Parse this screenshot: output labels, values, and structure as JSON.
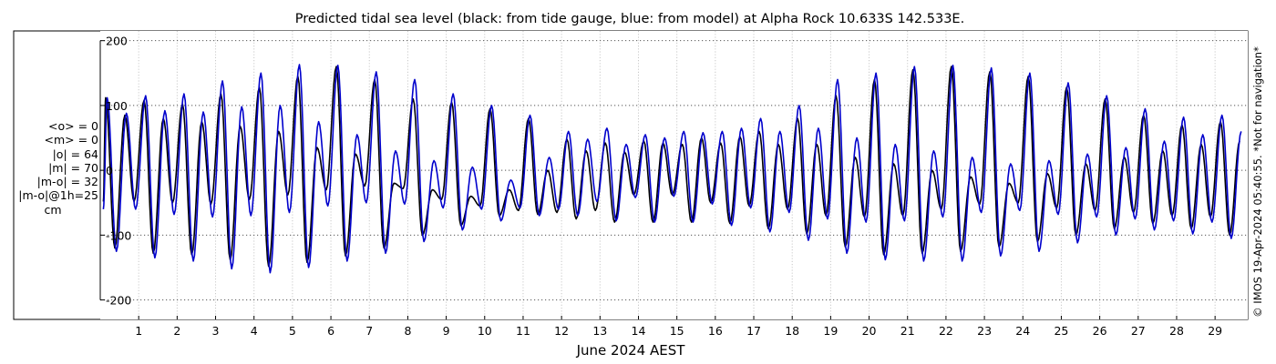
{
  "chart_data": {
    "type": "line",
    "title": "Predicted tidal sea level (black: from tide gauge, blue: from model) at Alpha Rock 10.633S 142.533E.",
    "xlabel": "June 2024 AEST",
    "ylabel": "",
    "xlim": [
      0,
      29.85
    ],
    "ylim": [
      -230,
      215
    ],
    "x_tick_labels": [
      "1",
      "2",
      "3",
      "4",
      "5",
      "6",
      "7",
      "8",
      "9",
      "10",
      "11",
      "12",
      "13",
      "14",
      "15",
      "16",
      "17",
      "18",
      "19",
      "20",
      "21",
      "22",
      "23",
      "24",
      "25",
      "26",
      "27",
      "28",
      "29"
    ],
    "y_tick_values": [
      -200,
      -100,
      0,
      100,
      200
    ],
    "grid": true,
    "unit": "cm",
    "series": [
      {
        "name": "from tide gauge",
        "color": "#000000",
        "values_per_day": [
          {
            "day": 0,
            "highs": [
              112,
              85
            ],
            "lows": [
              -120,
              -48
            ]
          },
          {
            "day": 1,
            "highs": [
              108,
              80
            ],
            "lows": [
              -128,
              -50
            ]
          },
          {
            "day": 2,
            "highs": [
              102,
              75
            ],
            "lows": [
              -130,
              -52
            ]
          },
          {
            "day": 3,
            "highs": [
              118,
              68
            ],
            "lows": [
              -138,
              -45
            ]
          },
          {
            "day": 4,
            "highs": [
              128,
              60
            ],
            "lows": [
              -148,
              -38
            ]
          },
          {
            "day": 5,
            "highs": [
              145,
              35
            ],
            "lows": [
              -142,
              -30
            ]
          },
          {
            "day": 6,
            "highs": [
              160,
              25
            ],
            "lows": [
              -132,
              -24
            ]
          },
          {
            "day": 7,
            "highs": [
              140,
              -20
            ],
            "lows": [
              -120,
              -28
            ]
          },
          {
            "day": 8,
            "highs": [
              110,
              -30
            ],
            "lows": [
              -100,
              -45
            ]
          },
          {
            "day": 9,
            "highs": [
              105,
              -40
            ],
            "lows": [
              -85,
              -55
            ]
          },
          {
            "day": 10,
            "highs": [
              95,
              -30
            ],
            "lows": [
              -70,
              -62
            ]
          },
          {
            "day": 11,
            "highs": [
              80,
              0
            ],
            "lows": [
              -68,
              -65
            ]
          },
          {
            "day": 12,
            "highs": [
              48,
              30
            ],
            "lows": [
              -75,
              -62
            ]
          },
          {
            "day": 13,
            "highs": [
              42,
              28
            ],
            "lows": [
              -80,
              -38
            ]
          },
          {
            "day": 14,
            "highs": [
              45,
              42
            ],
            "lows": [
              -80,
              -38
            ]
          },
          {
            "day": 15,
            "highs": [
              40,
              50
            ],
            "lows": [
              -80,
              -50
            ]
          },
          {
            "day": 16,
            "highs": [
              42,
              52
            ],
            "lows": [
              -82,
              -55
            ]
          },
          {
            "day": 17,
            "highs": [
              60,
              40
            ],
            "lows": [
              -90,
              -60
            ]
          },
          {
            "day": 18,
            "highs": [
              80,
              40
            ],
            "lows": [
              -98,
              -70
            ]
          },
          {
            "day": 19,
            "highs": [
              115,
              20
            ],
            "lows": [
              -118,
              -72
            ]
          },
          {
            "day": 20,
            "highs": [
              140,
              10
            ],
            "lows": [
              -130,
              -70
            ]
          },
          {
            "day": 21,
            "highs": [
              155,
              0
            ],
            "lows": [
              -128,
              -60
            ]
          },
          {
            "day": 22,
            "highs": [
              160,
              -10
            ],
            "lows": [
              -125,
              -52
            ]
          },
          {
            "day": 23,
            "highs": [
              152,
              -20
            ],
            "lows": [
              -118,
              -50
            ]
          },
          {
            "day": 24,
            "highs": [
              145,
              -5
            ],
            "lows": [
              -110,
              -58
            ]
          },
          {
            "day": 25,
            "highs": [
              128,
              10
            ],
            "lows": [
              -100,
              -62
            ]
          },
          {
            "day": 26,
            "highs": [
              110,
              20
            ],
            "lows": [
              -90,
              -65
            ]
          },
          {
            "day": 27,
            "highs": [
              85,
              30
            ],
            "lows": [
              -82,
              -70
            ]
          },
          {
            "day": 28,
            "highs": [
              70,
              40
            ],
            "lows": [
              -90,
              -72
            ]
          },
          {
            "day": 29,
            "highs": [
              75,
              45
            ],
            "lows": [
              -100,
              -75
            ]
          }
        ]
      },
      {
        "name": "from model",
        "color": "#0000cc",
        "values_per_day": [
          {
            "day": 0,
            "highs": [
              112,
              88
            ],
            "lows": [
              -125,
              -60
            ]
          },
          {
            "day": 1,
            "highs": [
              115,
              92
            ],
            "lows": [
              -135,
              -68
            ]
          },
          {
            "day": 2,
            "highs": [
              118,
              90
            ],
            "lows": [
              -140,
              -72
            ]
          },
          {
            "day": 3,
            "highs": [
              138,
              98
            ],
            "lows": [
              -152,
              -70
            ]
          },
          {
            "day": 4,
            "highs": [
              150,
              100
            ],
            "lows": [
              -158,
              -65
            ]
          },
          {
            "day": 5,
            "highs": [
              163,
              75
            ],
            "lows": [
              -150,
              -55
            ]
          },
          {
            "day": 6,
            "highs": [
              162,
              55
            ],
            "lows": [
              -140,
              -50
            ]
          },
          {
            "day": 7,
            "highs": [
              152,
              30
            ],
            "lows": [
              -128,
              -52
            ]
          },
          {
            "day": 8,
            "highs": [
              140,
              15
            ],
            "lows": [
              -110,
              -58
            ]
          },
          {
            "day": 9,
            "highs": [
              118,
              5
            ],
            "lows": [
              -92,
              -60
            ]
          },
          {
            "day": 10,
            "highs": [
              100,
              -15
            ],
            "lows": [
              -78,
              -58
            ]
          },
          {
            "day": 11,
            "highs": [
              85,
              20
            ],
            "lows": [
              -70,
              -60
            ]
          },
          {
            "day": 12,
            "highs": [
              60,
              48
            ],
            "lows": [
              -70,
              -48
            ]
          },
          {
            "day": 13,
            "highs": [
              65,
              40
            ],
            "lows": [
              -78,
              -42
            ]
          },
          {
            "day": 14,
            "highs": [
              55,
              50
            ],
            "lows": [
              -80,
              -40
            ]
          },
          {
            "day": 15,
            "highs": [
              60,
              58
            ],
            "lows": [
              -80,
              -52
            ]
          },
          {
            "day": 16,
            "highs": [
              60,
              65
            ],
            "lows": [
              -85,
              -58
            ]
          },
          {
            "day": 17,
            "highs": [
              80,
              60
            ],
            "lows": [
              -95,
              -65
            ]
          },
          {
            "day": 18,
            "highs": [
              100,
              65
            ],
            "lows": [
              -108,
              -75
            ]
          },
          {
            "day": 19,
            "highs": [
              140,
              50
            ],
            "lows": [
              -128,
              -80
            ]
          },
          {
            "day": 20,
            "highs": [
              150,
              40
            ],
            "lows": [
              -138,
              -78
            ]
          },
          {
            "day": 21,
            "highs": [
              160,
              30
            ],
            "lows": [
              -140,
              -72
            ]
          },
          {
            "day": 22,
            "highs": [
              162,
              20
            ],
            "lows": [
              -140,
              -65
            ]
          },
          {
            "day": 23,
            "highs": [
              158,
              10
            ],
            "lows": [
              -132,
              -62
            ]
          },
          {
            "day": 24,
            "highs": [
              150,
              15
            ],
            "lows": [
              -125,
              -68
            ]
          },
          {
            "day": 25,
            "highs": [
              135,
              25
            ],
            "lows": [
              -112,
              -72
            ]
          },
          {
            "day": 26,
            "highs": [
              115,
              35
            ],
            "lows": [
              -100,
              -75
            ]
          },
          {
            "day": 27,
            "highs": [
              95,
              45
            ],
            "lows": [
              -92,
              -78
            ]
          },
          {
            "day": 28,
            "highs": [
              82,
              55
            ],
            "lows": [
              -98,
              -80
            ]
          },
          {
            "day": 29,
            "highs": [
              85,
              60
            ],
            "lows": [
              -105,
              -82
            ]
          }
        ]
      }
    ]
  },
  "stats": {
    "mean_o": "<o> = 0",
    "mean_m": "<m> = 0",
    "abs_o": "|o| = 64",
    "abs_m": "|m| = 70",
    "abs_diff": "|m-o| = 32",
    "abs_diff_1h": "|m-o|@1h=25",
    "unit": "cm"
  },
  "footer_note": "© IMOS 19-Apr-2024 05:40:55. *Not for navigation*"
}
